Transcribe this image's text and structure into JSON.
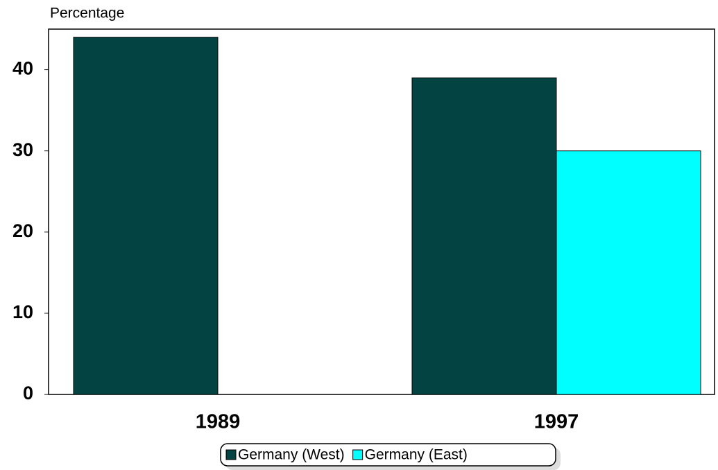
{
  "chart_data": {
    "type": "bar",
    "y_label": "Percentage",
    "categories": [
      "1989",
      "1997"
    ],
    "series": [
      {
        "name": "Germany (West)",
        "color": "#034341",
        "values": [
          44,
          39
        ]
      },
      {
        "name": "Germany (East)",
        "color": "#00ffff",
        "values": [
          null,
          30
        ]
      }
    ],
    "ylim": [
      0,
      45
    ],
    "yticks": [
      0,
      10,
      20,
      30,
      40
    ],
    "grid": false
  }
}
